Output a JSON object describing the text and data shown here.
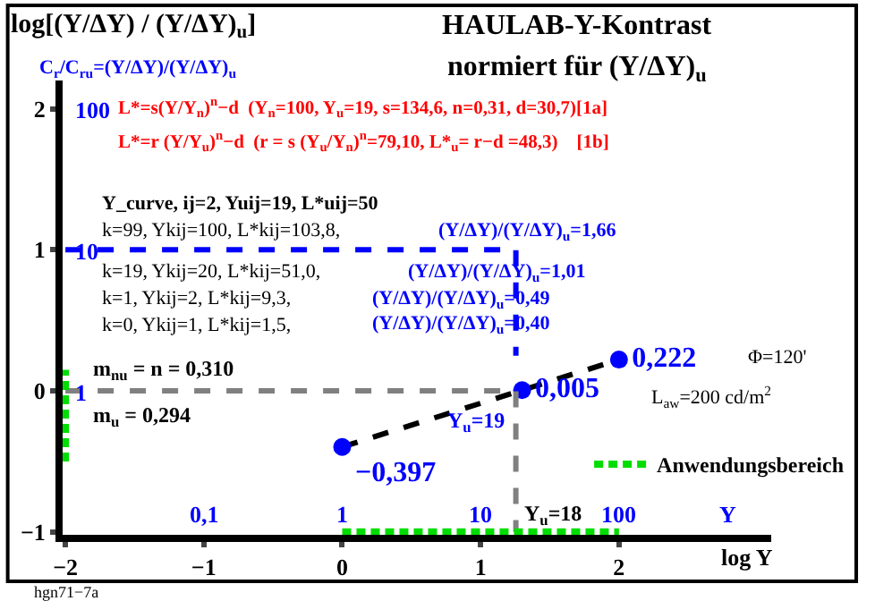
{
  "chart_data": {
    "type": "line",
    "title": "HAULAB-Y-Kontrast",
    "subtitle": "normiert für (Y/ΔY)$_{u}$",
    "ylabel": "log[(Y/ΔY) / (Y/ΔY)$_{u}$]",
    "y2label": "C$_{r}$/C$_{ru}$=(Y/ΔY)/(Y/ΔY)$_{u}$",
    "xlabel": "log Y",
    "x2label": "Y",
    "xlim": [
      -2.02,
      3.1
    ],
    "ylim": [
      -1.02,
      2.2
    ],
    "xticks": [
      {
        "value": -2,
        "label": "−2"
      },
      {
        "value": -1,
        "label": "−1"
      },
      0,
      1,
      2
    ],
    "yticks": [
      {
        "value": -1,
        "label": "−1"
      },
      0,
      1,
      2
    ],
    "legend": "right",
    "series": [
      {
        "color": "#000000",
        "line_style": "dashed",
        "marker": "none",
        "x": [
          0,
          1.3,
          2
        ],
        "values": [
          -0.397,
          0.005,
          0.222
        ]
      },
      {
        "type": "scatter",
        "color": "#0000ff",
        "marker": "circle",
        "x": [
          0,
          1.3,
          2
        ],
        "values": [
          -0.397,
          0.005,
          0.222
        ],
        "value_labels": [
          "−0,397",
          "0,005",
          "0,222"
        ]
      },
      {
        "color": "#808080",
        "line_style": "dashed",
        "marker": "none",
        "x": [
          -2,
          1.255,
          1.255
        ],
        "values": [
          0,
          0,
          -1
        ]
      },
      {
        "color": "#0000ff",
        "line_style": "dashed",
        "marker": "none",
        "x": [
          -2,
          1.255,
          1.255
        ],
        "values": [
          1,
          1,
          0.25
        ]
      },
      {
        "name": "Anwendungsbereich",
        "color": "#00dd00",
        "line_style": "dashed",
        "marker": "none",
        "x": [
          0,
          2
        ],
        "values": [
          -1,
          -1
        ]
      },
      {
        "color": "#00dd00",
        "line_style": "dashed",
        "marker": "none",
        "x": [
          -2,
          -2
        ],
        "values": [
          -0.5,
          0.15
        ]
      }
    ],
    "annotations": [
      "L*=s(Y/Y$_{n}$)$^{n}$−d  (Y$_{n}$=100, Y$_{u}$=19, s=134,6, n=0,31, d=30,7)[1a]",
      "L*=r (Y/Y$_{u}$)$^{n}$−d  (r = s (Y$_{u}$/Y$_{n}$)$^{n}$=79,10, L*$_{u}$= r−d =48,3)    [1b]",
      "Y_curve, ij=2, Yuij=19, L*uij=50",
      "k=99, Ykij=100, L*kij=103,8,",
      "(Y/ΔY)/(Y/ΔY)$_{u}$=1,66",
      "k=19, Ykij=20, L*kij=51,0,",
      "(Y/ΔY)/(Y/ΔY)$_{u}$=1,01",
      "k=1, Ykij=2, L*kij=9,3,",
      "(Y/ΔY)/(Y/ΔY)$_{u}$=0,49",
      "k=0, Ykij=1, L*kij=1,5,",
      "(Y/ΔY)/(Y/ΔY)$_{u}$=0,40",
      "m$_{nu}$ = n = 0,310",
      "m$_{u}$ = 0,294",
      "Y$_{u}$=19",
      "Y$_{u}$=18",
      "Φ=120'",
      "L$_{aw}$=200 cd/m$^{2}$",
      "hgn71−7a",
      "0,1",
      "1",
      "10",
      "100",
      "1",
      "10",
      "100"
    ]
  }
}
